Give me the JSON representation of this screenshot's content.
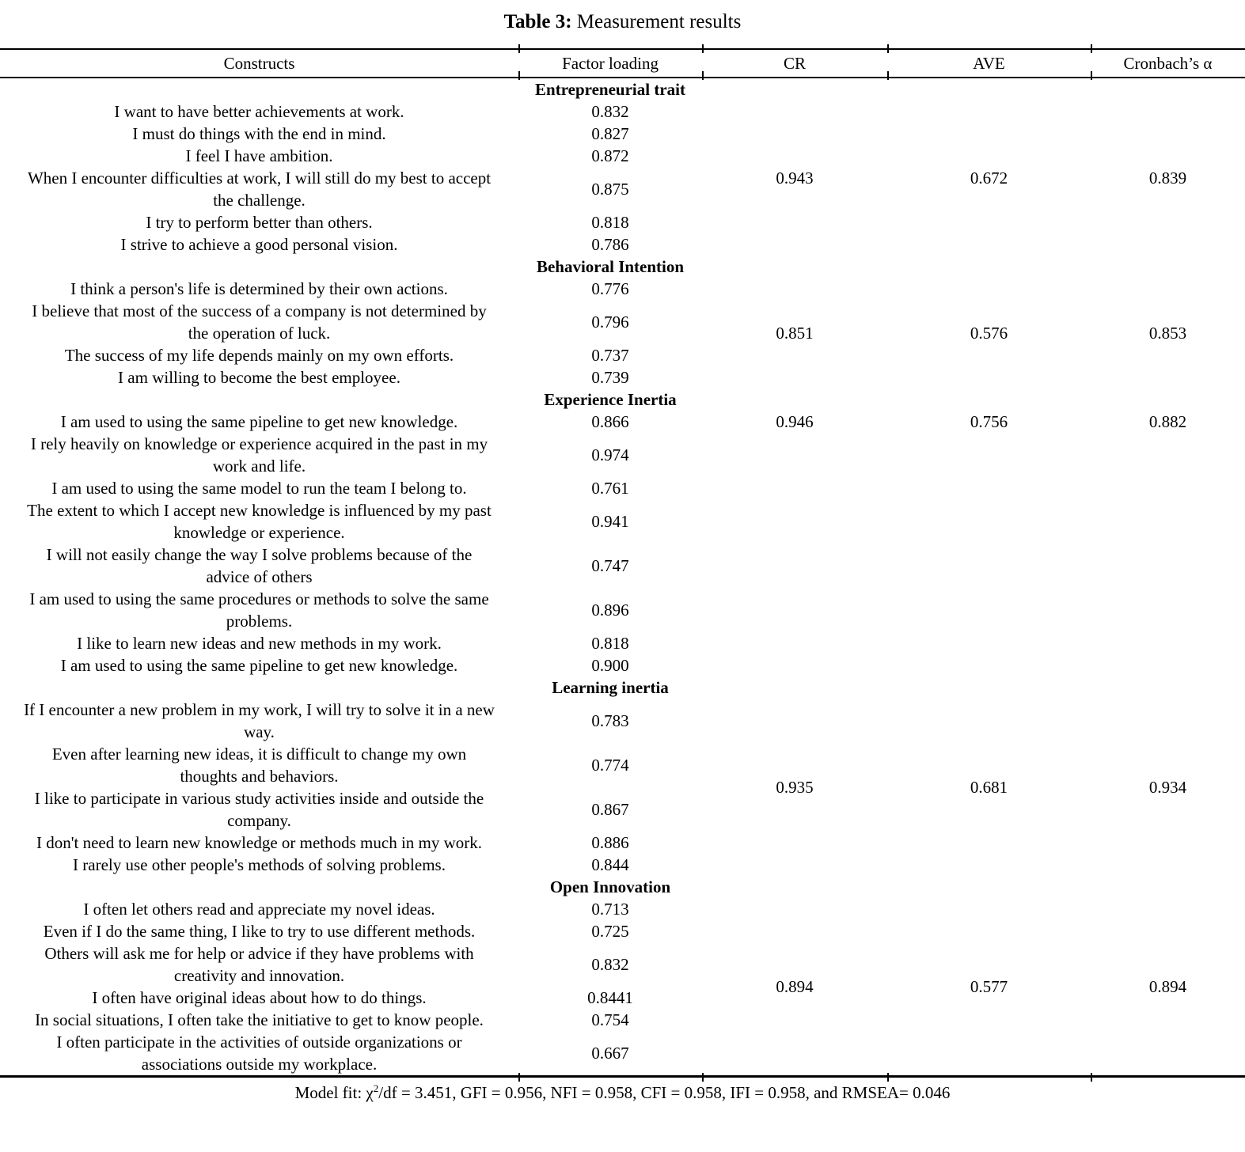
{
  "title": {
    "bold": "Table 3:",
    "text": " Measurement results"
  },
  "columns": [
    "Constructs",
    "Factor loading",
    "CR",
    "AVE",
    "Cronbach’s α"
  ],
  "sections": [
    {
      "name": "Entrepreneurial trait",
      "cr": "0.943",
      "ave": "0.672",
      "cronbach_alpha": "0.839",
      "stats_valign": "middle",
      "items": [
        {
          "construct": "I want to have better achievements at work.",
          "loading": "0.832"
        },
        {
          "construct": "I must do things with the end in mind.",
          "loading": "0.827"
        },
        {
          "construct": "I feel I have ambition.",
          "loading": "0.872"
        },
        {
          "construct": "When I encounter difficulties at work, I will still do my best to accept the challenge.",
          "loading": "0.875"
        },
        {
          "construct": "I try to perform better than others.",
          "loading": "0.818"
        },
        {
          "construct": "I strive to achieve a good personal vision.",
          "loading": "0.786"
        }
      ]
    },
    {
      "name": "Behavioral Intention",
      "cr": "0.851",
      "ave": "0.576",
      "cronbach_alpha": "0.853",
      "stats_valign": "middle",
      "items": [
        {
          "construct": "I think a person's life is determined by their own actions.",
          "loading": "0.776"
        },
        {
          "construct": "I believe that most of the success of a company is not determined by the operation of luck.",
          "loading": "0.796"
        },
        {
          "construct": "The success of my life depends mainly on my own efforts.",
          "loading": "0.737"
        },
        {
          "construct": "I am willing to become the best employee.",
          "loading": "0.739"
        }
      ]
    },
    {
      "name": "Experience Inertia",
      "cr": "0.946",
      "ave": "0.756",
      "cronbach_alpha": "0.882",
      "stats_valign": "top",
      "items": [
        {
          "construct": "I am used to using the same pipeline to get new knowledge.",
          "loading": "0.866"
        },
        {
          "construct": "I rely heavily on knowledge or experience acquired in the past in my work and life.",
          "loading": "0.974"
        },
        {
          "construct": "I am used to using the same model to run the team I belong to.",
          "loading": "0.761"
        },
        {
          "construct": "The extent to which I accept new knowledge is influenced by my past knowledge or experience.",
          "loading": "0.941"
        },
        {
          "construct": "I will not easily change the way I solve problems because of the advice of others",
          "loading": "0.747"
        },
        {
          "construct": "I am used to using the same procedures or methods to solve the same problems.",
          "loading": "0.896"
        },
        {
          "construct": "I like to learn new ideas and new methods in my work.",
          "loading": "0.818"
        },
        {
          "construct": "I am used to using the same pipeline to get new knowledge.",
          "loading": "0.900"
        }
      ]
    },
    {
      "name": "Learning inertia",
      "cr": "0.935",
      "ave": "0.681",
      "cronbach_alpha": "0.934",
      "stats_valign": "middle",
      "items": [
        {
          "construct": "If I encounter a new problem in my work, I will try to solve it in a new way.",
          "loading": "0.783"
        },
        {
          "construct": "Even after learning new ideas, it is difficult to change my own thoughts and behaviors.",
          "loading": "0.774"
        },
        {
          "construct": "I like to participate in various study activities inside and outside the company.",
          "loading": "0.867"
        },
        {
          "construct": "I don't need to learn new knowledge or methods much in my work.",
          "loading": "0.886"
        },
        {
          "construct": "I rarely use other people's methods of solving problems.",
          "loading": "0.844"
        }
      ]
    },
    {
      "name": "Open Innovation",
      "cr": "0.894",
      "ave": "0.577",
      "cronbach_alpha": "0.894",
      "stats_valign": "middle",
      "items": [
        {
          "construct": "I often let others read and appreciate my novel ideas.",
          "loading": "0.713"
        },
        {
          "construct": "Even if I do the same thing, I like to try to use different methods.",
          "loading": "0.725"
        },
        {
          "construct": "Others will ask me for help or advice if they have problems with creativity and innovation.",
          "loading": "0.832"
        },
        {
          "construct": "I often have original ideas about how to do things.",
          "loading": "0.8441"
        },
        {
          "construct": "In social situations, I often take the initiative to get to know people.",
          "loading": "0.754"
        },
        {
          "construct": "I often participate in the activities of outside organizations or associations outside my workplace.",
          "loading": "0.667"
        }
      ]
    }
  ],
  "footer": {
    "prefix": "Model fit: χ",
    "superscript": "2",
    "suffix": "/df = 3.451, GFI = 0.956, NFI = 0.958, CFI = 0.958, IFI = 0.958, and RMSEA= 0.046"
  }
}
